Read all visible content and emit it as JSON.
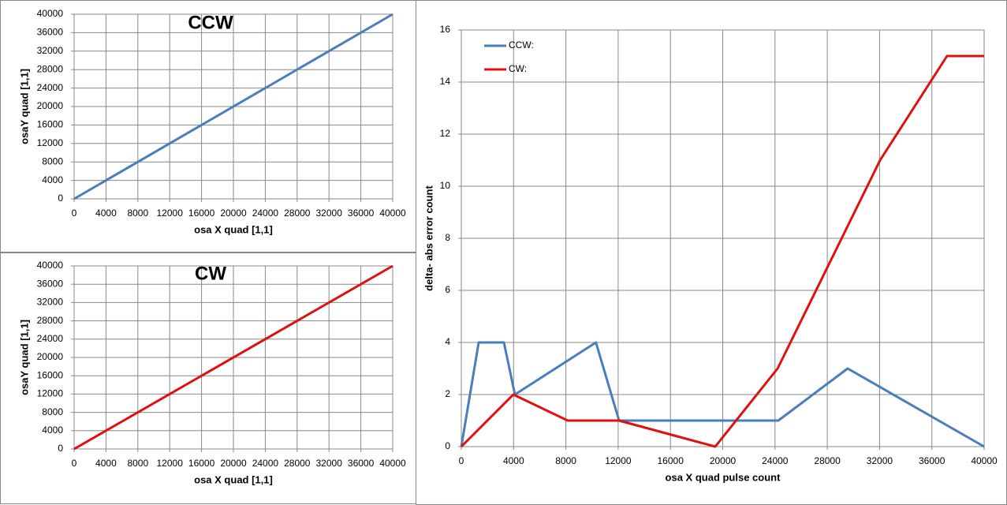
{
  "chart_data": [
    {
      "type": "line",
      "title": "CCW",
      "x_label": "osa X quad [1,1]",
      "y_label": "osaY  quad [1,1]",
      "xlim": [
        0,
        40000
      ],
      "xticks": [
        0,
        4000,
        8000,
        12000,
        16000,
        20000,
        24000,
        28000,
        32000,
        36000,
        40000
      ],
      "ylim": [
        0,
        40000
      ],
      "yticks": [
        0,
        4000,
        8000,
        12000,
        16000,
        20000,
        24000,
        28000,
        32000,
        36000,
        40000
      ],
      "grid": true,
      "series": [
        {
          "color": "#4a7ebb",
          "x": [
            0,
            40000
          ],
          "values": [
            0,
            40000
          ]
        }
      ]
    },
    {
      "type": "line",
      "title": "CW",
      "x_label": "osa X quad [1,1]",
      "y_label": "osaY  quad [1,1]",
      "xlim": [
        0,
        40000
      ],
      "xticks": [
        0,
        4000,
        8000,
        12000,
        16000,
        20000,
        24000,
        28000,
        32000,
        36000,
        40000
      ],
      "ylim": [
        0,
        40000
      ],
      "yticks": [
        0,
        4000,
        8000,
        12000,
        16000,
        20000,
        24000,
        28000,
        32000,
        36000,
        40000
      ],
      "grid": true,
      "series": [
        {
          "color": "#e01010",
          "x": [
            0,
            40000
          ],
          "values": [
            0,
            40000
          ]
        }
      ]
    },
    {
      "type": "line",
      "x_label": "osa X quad pulse count",
      "y_label": "delta- abs error count",
      "xlim": [
        0,
        40000
      ],
      "xticks": [
        0,
        4000,
        8000,
        12000,
        16000,
        20000,
        24000,
        28000,
        32000,
        36000,
        40000
      ],
      "ylim": [
        0,
        16
      ],
      "yticks": [
        0,
        2,
        4,
        6,
        8,
        10,
        12,
        14,
        16
      ],
      "grid": true,
      "legend": "upper left",
      "series": [
        {
          "name": "CCW:",
          "color": "#4a7ebb",
          "x": [
            0,
            1330,
            3260,
            4100,
            10300,
            12070,
            24250,
            29560,
            40000
          ],
          "values": [
            0,
            4,
            4,
            2,
            4,
            1,
            1,
            3,
            0
          ]
        },
        {
          "name": "CW:",
          "color": "#e01010",
          "x": [
            0,
            3980,
            8140,
            12070,
            19430,
            24200,
            32040,
            37160,
            40000
          ],
          "values": [
            0,
            2,
            1,
            1,
            0,
            3,
            11,
            15,
            15
          ]
        }
      ]
    }
  ]
}
